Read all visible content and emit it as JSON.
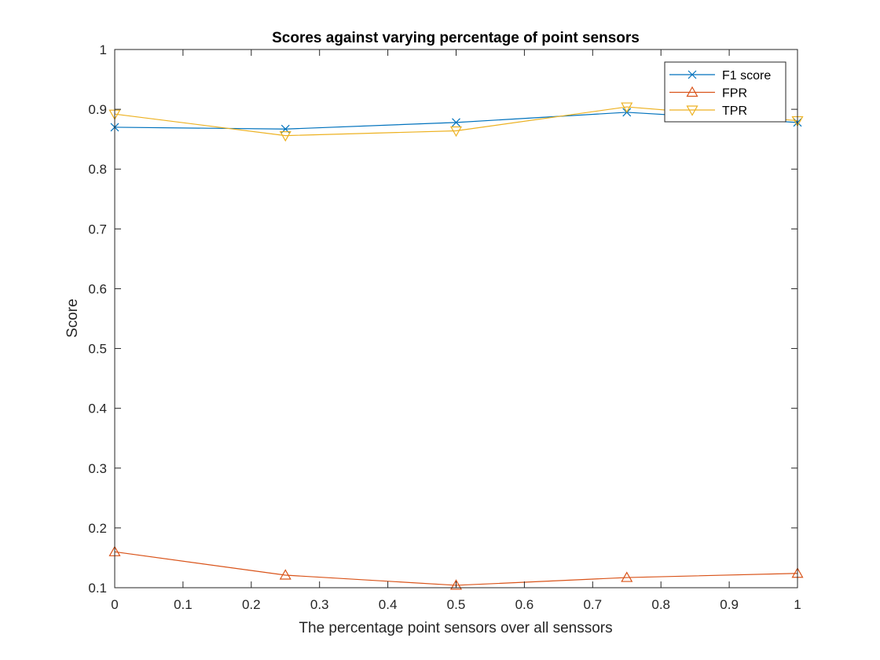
{
  "chart_data": {
    "type": "line",
    "title": "Scores against varying percentage of point sensors",
    "xlabel": "The percentage point sensors over all senssors",
    "ylabel": "Score",
    "xlim": [
      0,
      1
    ],
    "ylim": [
      0.1,
      1
    ],
    "xticks": [
      0,
      0.1,
      0.2,
      0.3,
      0.4,
      0.5,
      0.6,
      0.7,
      0.8,
      0.9,
      1
    ],
    "xtick_labels": [
      "0",
      "0.1",
      "0.2",
      "0.3",
      "0.4",
      "0.5",
      "0.6",
      "0.7",
      "0.8",
      "0.9",
      "1"
    ],
    "yticks": [
      0.1,
      0.2,
      0.3,
      0.4,
      0.5,
      0.6,
      0.7,
      0.8,
      0.9,
      1
    ],
    "ytick_labels": [
      "0.1",
      "0.2",
      "0.3",
      "0.4",
      "0.5",
      "0.6",
      "0.7",
      "0.8",
      "0.9",
      "1"
    ],
    "grid": false,
    "legend_position": "top-right",
    "x": [
      0,
      0.25,
      0.5,
      0.75,
      1
    ],
    "series": [
      {
        "name": "F1 score",
        "values": [
          0.87,
          0.867,
          0.878,
          0.895,
          0.878
        ],
        "color": "#0072BD",
        "marker": "x"
      },
      {
        "name": "FPR",
        "values": [
          0.16,
          0.121,
          0.104,
          0.117,
          0.124
        ],
        "color": "#D95319",
        "marker": "triangle-up"
      },
      {
        "name": "TPR",
        "values": [
          0.892,
          0.856,
          0.864,
          0.904,
          0.881
        ],
        "color": "#EDB120",
        "marker": "triangle-down"
      }
    ]
  }
}
